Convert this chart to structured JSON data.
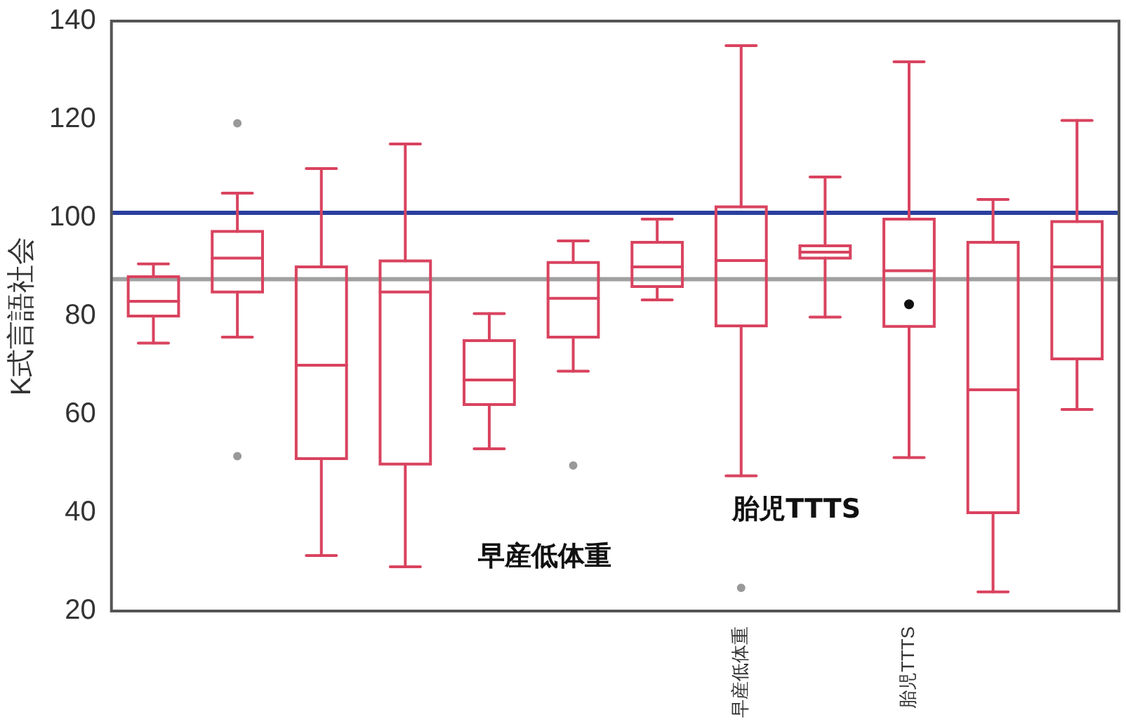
{
  "chart_data": {
    "type": "box",
    "ylabel": "K式言語社会",
    "categories": [
      null,
      null,
      null,
      null,
      null,
      null,
      null,
      "早産低体重",
      null,
      "胎児TTTS",
      null,
      null
    ],
    "color": "#d9435f",
    "boxes": [
      {
        "low": 74.5,
        "q1": 80,
        "median": 83,
        "q3": 88,
        "high": 90.6
      },
      {
        "low": 75.7,
        "q1": 84.9,
        "median": 91.8,
        "q3": 97.2,
        "high": 105,
        "outliers": [
          119.2,
          51.5
        ]
      },
      {
        "low": 31.3,
        "q1": 51,
        "median": 70,
        "q3": 90,
        "high": 110
      },
      {
        "low": 29,
        "q1": 49.9,
        "median": 84.9,
        "q3": 91.2,
        "high": 115
      },
      {
        "low": 53,
        "q1": 62,
        "median": 67,
        "q3": 75,
        "high": 80.5
      },
      {
        "low": 68.8,
        "q1": 75.7,
        "median": 83.6,
        "q3": 90.9,
        "high": 95.3,
        "outliers": [
          49.6
        ]
      },
      {
        "low": 83.3,
        "q1": 86,
        "median": 90,
        "q3": 95,
        "high": 99.7
      },
      {
        "low": 47.5,
        "q1": 78,
        "median": 91.3,
        "q3": 102.2,
        "high": 135,
        "outliers": [
          24.7
        ]
      },
      {
        "low": 79.8,
        "q1": 91.8,
        "median": 93,
        "q3": 94.3,
        "high": 108.3
      },
      {
        "low": 51.2,
        "q1": 77.9,
        "median": 89.2,
        "q3": 99.7,
        "high": 131.7,
        "mean": 82.4
      },
      {
        "low": 23.9,
        "q1": 40,
        "median": 65,
        "q3": 95,
        "high": 103.7
      },
      {
        "low": 61,
        "q1": 71.3,
        "median": 90,
        "q3": 99.2,
        "high": 119.8
      }
    ],
    "ylim": [
      20,
      140
    ],
    "yticks": [
      20,
      40,
      60,
      80,
      100,
      120,
      140
    ],
    "grid": false,
    "ref_lines": [
      {
        "axis": "y",
        "value": 101,
        "color": "#2a3f9e"
      },
      {
        "axis": "y",
        "value": 87.5,
        "color": "#a0a0a0"
      }
    ],
    "annotations": [
      "早産低体重",
      "胎児TTTS"
    ]
  }
}
